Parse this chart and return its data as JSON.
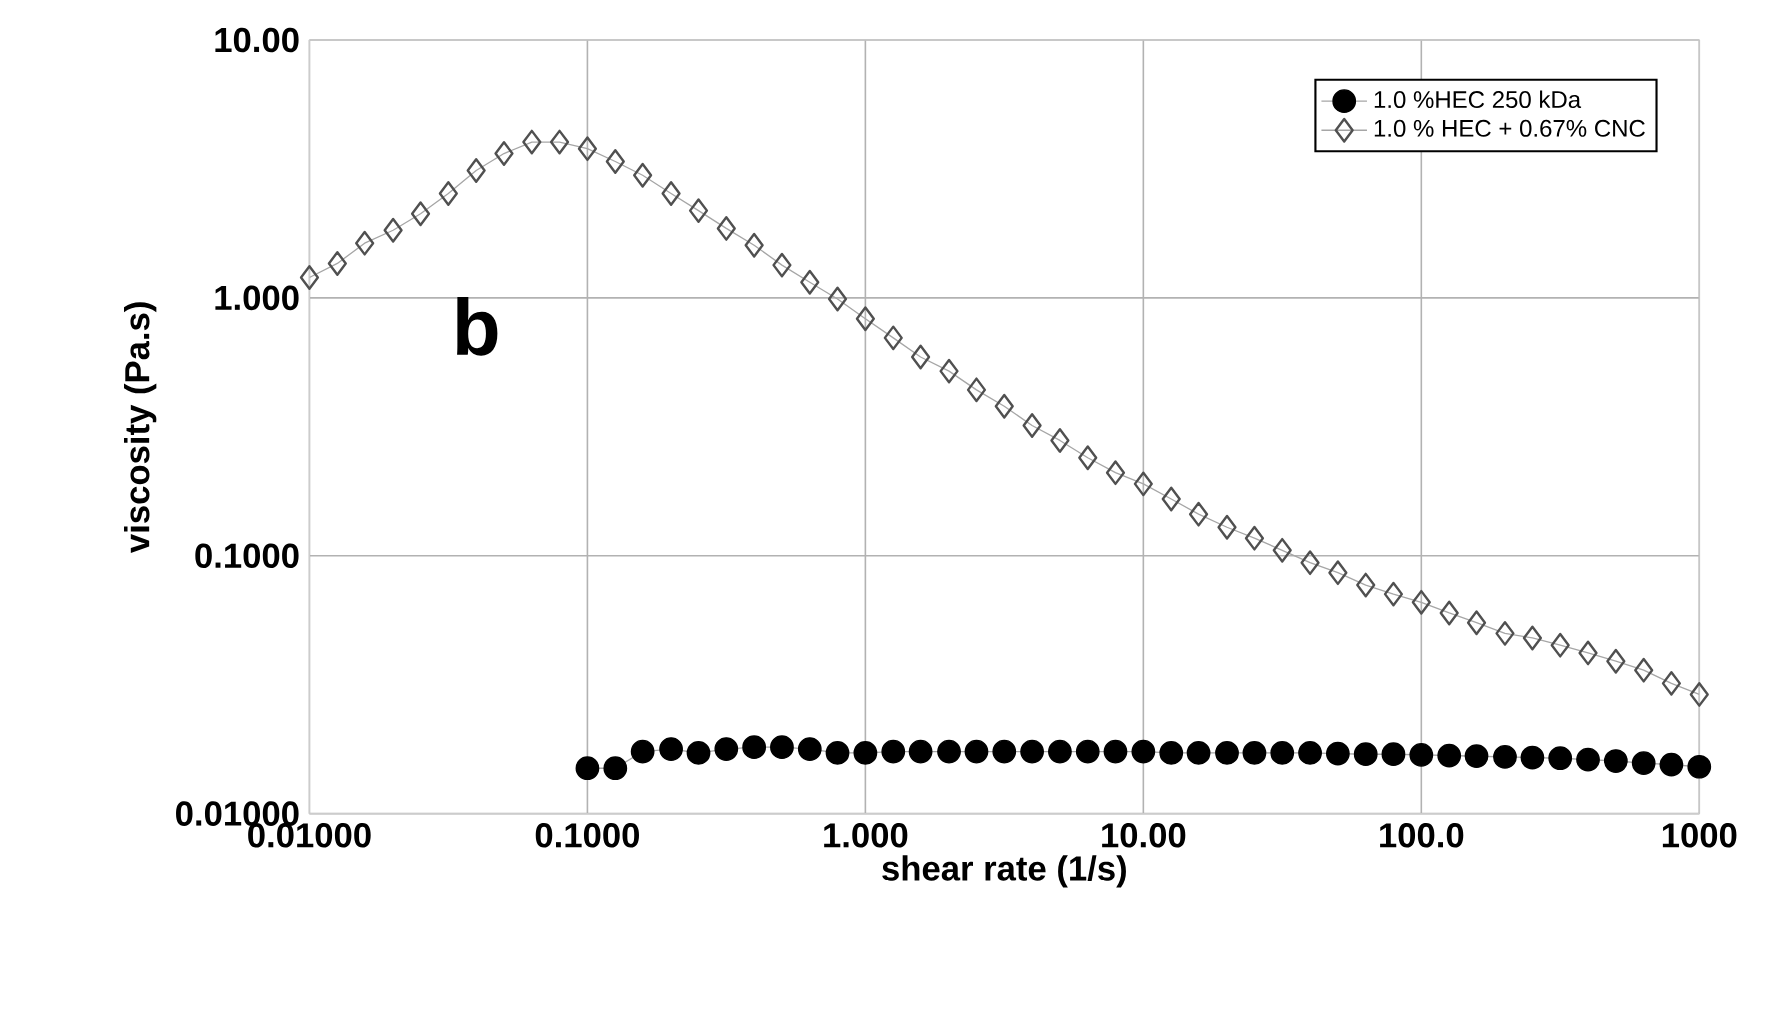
{
  "chart_data": {
    "type": "line",
    "xlabel": "shear rate (1/s)",
    "ylabel": "viscosity (Pa.s)",
    "log": "xy",
    "grid": true,
    "legend": "top right",
    "xlim": [
      0.01,
      1000
    ],
    "ylim": [
      0.01,
      10
    ],
    "xticks": [
      {
        "value": 0.01,
        "label": "0.01000"
      },
      {
        "value": 0.1,
        "label": "0.1000"
      },
      {
        "value": 1,
        "label": "1.000"
      },
      {
        "value": 10,
        "label": "10.00"
      },
      {
        "value": 100,
        "label": "100.0"
      },
      {
        "value": 1000,
        "label": "1000"
      }
    ],
    "yticks": [
      {
        "value": 0.01,
        "label": "0.01000"
      },
      {
        "value": 0.1,
        "label": "0.1000"
      },
      {
        "value": 1,
        "label": "1.000"
      },
      {
        "value": 10,
        "label": "10.00"
      }
    ],
    "annotations": [
      "b"
    ],
    "series": [
      {
        "name": "1.0 %HEC 250 kDa",
        "color": "#000000",
        "marker": "circle",
        "line_style": "solid",
        "x": [
          0.1,
          0.126,
          0.158,
          0.2,
          0.251,
          0.316,
          0.398,
          0.501,
          0.631,
          0.794,
          1,
          1.26,
          1.58,
          2,
          2.51,
          3.16,
          3.98,
          5.01,
          6.31,
          7.94,
          10,
          12.6,
          15.8,
          20,
          25.1,
          31.6,
          39.8,
          50.1,
          63.1,
          79.4,
          100,
          126,
          158,
          200,
          251,
          316,
          398,
          501,
          631,
          794,
          1000
        ],
        "values": [
          0.015,
          0.015,
          0.0174,
          0.0178,
          0.0172,
          0.0178,
          0.0181,
          0.0181,
          0.0178,
          0.0172,
          0.0172,
          0.0174,
          0.0174,
          0.0174,
          0.0174,
          0.0174,
          0.0174,
          0.0174,
          0.0174,
          0.0174,
          0.0174,
          0.0172,
          0.0172,
          0.0172,
          0.0172,
          0.0172,
          0.0172,
          0.0171,
          0.017,
          0.017,
          0.0169,
          0.0168,
          0.0167,
          0.0166,
          0.0165,
          0.0164,
          0.0162,
          0.016,
          0.0157,
          0.0155,
          0.0152
        ]
      },
      {
        "name": "1.0 % HEC + 0.67% CNC",
        "color": "#505050",
        "marker": "diamond",
        "line_style": "solid",
        "x": [
          0.01,
          0.0126,
          0.0158,
          0.02,
          0.0251,
          0.0316,
          0.0398,
          0.0501,
          0.0631,
          0.0794,
          0.1,
          0.126,
          0.158,
          0.2,
          0.251,
          0.316,
          0.398,
          0.501,
          0.631,
          0.794,
          1,
          1.26,
          1.58,
          2,
          2.51,
          3.16,
          3.98,
          5.01,
          6.31,
          7.94,
          10,
          12.6,
          15.8,
          20,
          25.1,
          31.6,
          39.8,
          50.1,
          63.1,
          79.4,
          100,
          126,
          158,
          200,
          251,
          316,
          398,
          501,
          631,
          794,
          1000
        ],
        "values": [
          1.2,
          1.36,
          1.63,
          1.83,
          2.12,
          2.54,
          3.12,
          3.63,
          4.02,
          4.02,
          3.79,
          3.38,
          2.99,
          2.54,
          2.18,
          1.86,
          1.6,
          1.34,
          1.15,
          0.99,
          0.83,
          0.7,
          0.59,
          0.52,
          0.44,
          0.38,
          0.32,
          0.28,
          0.24,
          0.21,
          0.19,
          0.166,
          0.145,
          0.129,
          0.117,
          0.105,
          0.094,
          0.086,
          0.077,
          0.071,
          0.066,
          0.06,
          0.055,
          0.05,
          0.048,
          0.045,
          0.042,
          0.039,
          0.036,
          0.032,
          0.029
        ]
      }
    ]
  }
}
